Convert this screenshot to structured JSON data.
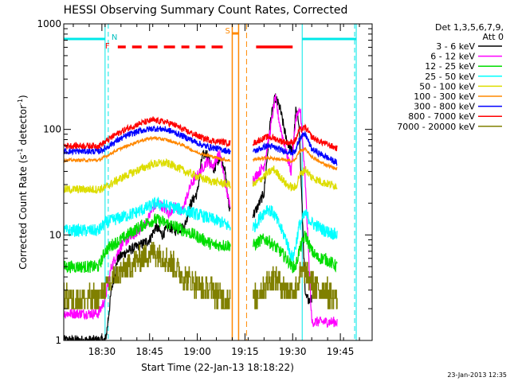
{
  "chart_data": {
    "type": "line",
    "title": "HESSI Observing Summary Count Rates, Corrected",
    "xlabel": "Start Time (22-Jan-13 18:18:22)",
    "ylabel_main": "Corrected Count Rate (s",
    "ylabel_sup1": "-1",
    "ylabel_mid": " detector",
    "ylabel_sup2": "-1",
    "ylabel_end": ")",
    "ylog": true,
    "ylim": [
      1,
      1000
    ],
    "y_ticks": [
      {
        "v": 1,
        "label": "1"
      },
      {
        "v": 10,
        "label": "10"
      },
      {
        "v": 100,
        "label": "100"
      },
      {
        "v": 1000,
        "label": "1000"
      }
    ],
    "xlim": [
      0,
      97
    ],
    "x_ticks": [
      {
        "v": 12,
        "label": "18:30"
      },
      {
        "v": 27,
        "label": "18:45"
      },
      {
        "v": 42,
        "label": "19:00"
      },
      {
        "v": 57,
        "label": "19:15"
      },
      {
        "v": 72,
        "label": "19:30"
      },
      {
        "v": 87,
        "label": "19:45"
      }
    ],
    "legend_title": "Det 1,3,5,6,7,9,",
    "legend_subtitle": "Att 0",
    "data_gaps": [
      [
        52.5,
        59.5
      ]
    ],
    "series": [
      {
        "name": "3 - 6 keV",
        "color": "#000000",
        "noise": 0.05,
        "points": [
          [
            0,
            1.0
          ],
          [
            13,
            1.0
          ],
          [
            13.5,
            1.2
          ],
          [
            15,
            3
          ],
          [
            17,
            6
          ],
          [
            20,
            7
          ],
          [
            24,
            8
          ],
          [
            27,
            9
          ],
          [
            29,
            12
          ],
          [
            31,
            10
          ],
          [
            33,
            12
          ],
          [
            35,
            11
          ],
          [
            38,
            12
          ],
          [
            40,
            20
          ],
          [
            42,
            25
          ],
          [
            43.5,
            55
          ],
          [
            45,
            60
          ],
          [
            47,
            40
          ],
          [
            49,
            55
          ],
          [
            50.5,
            45
          ],
          [
            52,
            18
          ],
          [
            60,
            16
          ],
          [
            63,
            25
          ],
          [
            65,
            120
          ],
          [
            66.5,
            200
          ],
          [
            68,
            160
          ],
          [
            70,
            80
          ],
          [
            72,
            60
          ],
          [
            73,
            150
          ],
          [
            74,
            120
          ],
          [
            76,
            2.5
          ],
          [
            78,
            2.5
          ]
        ]
      },
      {
        "name": "6 - 12 keV",
        "color": "#ff00ff",
        "noise": 0.05,
        "points": [
          [
            0,
            1.8
          ],
          [
            11,
            1.8
          ],
          [
            13,
            2.5
          ],
          [
            15,
            5
          ],
          [
            18,
            8
          ],
          [
            22,
            10
          ],
          [
            26,
            13
          ],
          [
            28,
            18
          ],
          [
            30,
            20
          ],
          [
            33,
            16
          ],
          [
            35,
            19
          ],
          [
            37,
            16
          ],
          [
            40,
            30
          ],
          [
            43,
            40
          ],
          [
            45,
            50
          ],
          [
            47,
            45
          ],
          [
            49,
            60
          ],
          [
            52,
            20
          ],
          [
            60,
            35
          ],
          [
            63,
            45
          ],
          [
            65,
            100
          ],
          [
            66.5,
            200
          ],
          [
            68,
            110
          ],
          [
            70,
            60
          ],
          [
            71.5,
            40
          ],
          [
            73,
            130
          ],
          [
            74.5,
            150
          ],
          [
            76,
            30
          ],
          [
            78,
            1.5
          ],
          [
            86,
            1.5
          ]
        ]
      },
      {
        "name": "12 - 25 keV",
        "color": "#00dd00",
        "noise": 0.06,
        "points": [
          [
            0,
            5
          ],
          [
            11,
            5
          ],
          [
            13,
            7
          ],
          [
            15,
            8
          ],
          [
            18,
            9
          ],
          [
            22,
            11
          ],
          [
            26,
            13
          ],
          [
            29,
            14
          ],
          [
            32,
            13
          ],
          [
            35,
            12
          ],
          [
            38,
            11
          ],
          [
            41,
            10
          ],
          [
            44,
            9
          ],
          [
            47,
            8
          ],
          [
            50,
            8
          ],
          [
            52,
            8
          ],
          [
            60,
            8
          ],
          [
            62,
            9
          ],
          [
            64,
            9
          ],
          [
            66,
            8
          ],
          [
            68,
            7
          ],
          [
            70,
            6
          ],
          [
            72,
            5
          ],
          [
            73,
            5
          ],
          [
            74,
            7
          ],
          [
            76,
            10
          ],
          [
            78,
            7
          ],
          [
            80,
            6
          ],
          [
            82,
            6
          ],
          [
            86,
            5
          ]
        ]
      },
      {
        "name": "25 - 50 keV",
        "color": "#00ffff",
        "noise": 0.06,
        "points": [
          [
            0,
            11
          ],
          [
            11,
            11
          ],
          [
            13,
            13
          ],
          [
            16,
            14
          ],
          [
            19,
            15
          ],
          [
            22,
            16
          ],
          [
            26,
            18
          ],
          [
            29,
            20
          ],
          [
            32,
            19
          ],
          [
            35,
            18
          ],
          [
            38,
            17
          ],
          [
            41,
            16
          ],
          [
            44,
            15
          ],
          [
            47,
            14
          ],
          [
            50,
            13
          ],
          [
            52,
            12
          ],
          [
            60,
            12
          ],
          [
            62,
            15
          ],
          [
            64,
            18
          ],
          [
            66,
            16
          ],
          [
            68,
            12
          ],
          [
            70,
            9
          ],
          [
            71,
            7
          ],
          [
            72,
            6
          ],
          [
            73,
            8
          ],
          [
            74,
            12
          ],
          [
            76,
            16
          ],
          [
            78,
            13
          ],
          [
            80,
            12
          ],
          [
            82,
            11
          ],
          [
            86,
            10
          ]
        ]
      },
      {
        "name": "50 - 100 keV",
        "color": "#dddd00",
        "noise": 0.04,
        "points": [
          [
            0,
            27
          ],
          [
            11,
            27
          ],
          [
            13,
            28
          ],
          [
            16,
            32
          ],
          [
            20,
            37
          ],
          [
            24,
            42
          ],
          [
            28,
            47
          ],
          [
            32,
            48
          ],
          [
            35,
            45
          ],
          [
            38,
            40
          ],
          [
            41,
            37
          ],
          [
            44,
            34
          ],
          [
            47,
            32
          ],
          [
            50,
            31
          ],
          [
            52,
            30
          ],
          [
            60,
            30
          ],
          [
            62,
            34
          ],
          [
            64,
            38
          ],
          [
            66,
            42
          ],
          [
            68,
            36
          ],
          [
            70,
            30
          ],
          [
            72,
            28
          ],
          [
            73,
            28
          ],
          [
            74,
            36
          ],
          [
            76,
            42
          ],
          [
            78,
            35
          ],
          [
            80,
            33
          ],
          [
            82,
            31
          ],
          [
            86,
            29
          ]
        ]
      },
      {
        "name": "100 - 300 keV",
        "color": "#ff8800",
        "noise": 0.015,
        "points": [
          [
            0,
            51
          ],
          [
            11,
            51
          ],
          [
            13,
            55
          ],
          [
            16,
            62
          ],
          [
            20,
            70
          ],
          [
            24,
            78
          ],
          [
            28,
            83
          ],
          [
            32,
            80
          ],
          [
            35,
            75
          ],
          [
            38,
            70
          ],
          [
            41,
            62
          ],
          [
            44,
            58
          ],
          [
            47,
            55
          ],
          [
            50,
            52
          ],
          [
            52,
            51
          ],
          [
            60,
            52
          ],
          [
            62,
            53
          ],
          [
            64,
            54
          ],
          [
            66,
            53
          ],
          [
            68,
            52
          ],
          [
            70,
            51
          ],
          [
            72,
            50
          ],
          [
            73,
            52
          ],
          [
            74,
            62
          ],
          [
            76,
            65
          ],
          [
            78,
            55
          ],
          [
            80,
            50
          ],
          [
            82,
            47
          ],
          [
            86,
            42
          ]
        ]
      },
      {
        "name": "300 - 800 keV",
        "color": "#0000ff",
        "noise": 0.03,
        "points": [
          [
            0,
            62
          ],
          [
            11,
            62
          ],
          [
            13,
            66
          ],
          [
            16,
            76
          ],
          [
            20,
            88
          ],
          [
            24,
            97
          ],
          [
            28,
            102
          ],
          [
            32,
            100
          ],
          [
            35,
            93
          ],
          [
            38,
            85
          ],
          [
            41,
            77
          ],
          [
            44,
            70
          ],
          [
            47,
            67
          ],
          [
            50,
            64
          ],
          [
            52,
            62
          ],
          [
            60,
            62
          ],
          [
            62,
            66
          ],
          [
            64,
            70
          ],
          [
            66,
            68
          ],
          [
            68,
            64
          ],
          [
            70,
            62
          ],
          [
            72,
            60
          ],
          [
            73,
            62
          ],
          [
            74,
            82
          ],
          [
            76,
            90
          ],
          [
            78,
            65
          ],
          [
            80,
            60
          ],
          [
            82,
            56
          ],
          [
            86,
            48
          ]
        ]
      },
      {
        "name": "800 - 7000 keV",
        "color": "#ff0000",
        "noise": 0.03,
        "points": [
          [
            0,
            70
          ],
          [
            11,
            70
          ],
          [
            13,
            76
          ],
          [
            16,
            88
          ],
          [
            20,
            102
          ],
          [
            24,
            114
          ],
          [
            28,
            122
          ],
          [
            32,
            118
          ],
          [
            35,
            110
          ],
          [
            38,
            98
          ],
          [
            41,
            90
          ],
          [
            44,
            82
          ],
          [
            47,
            78
          ],
          [
            50,
            76
          ],
          [
            52,
            74
          ],
          [
            60,
            75
          ],
          [
            62,
            80
          ],
          [
            64,
            85
          ],
          [
            66,
            83
          ],
          [
            68,
            78
          ],
          [
            70,
            75
          ],
          [
            72,
            75
          ],
          [
            73,
            80
          ],
          [
            74,
            98
          ],
          [
            76,
            104
          ],
          [
            78,
            85
          ],
          [
            80,
            78
          ],
          [
            82,
            74
          ],
          [
            86,
            66
          ]
        ]
      },
      {
        "name": "7000 - 20000 keV",
        "color": "#808000",
        "noise": 0.12,
        "step": true,
        "points": [
          [
            0,
            2.5
          ],
          [
            11,
            2.5
          ],
          [
            13,
            3
          ],
          [
            16,
            4
          ],
          [
            20,
            5
          ],
          [
            24,
            6
          ],
          [
            28,
            7
          ],
          [
            32,
            6
          ],
          [
            35,
            5
          ],
          [
            38,
            4
          ],
          [
            41,
            3.5
          ],
          [
            44,
            3
          ],
          [
            47,
            3
          ],
          [
            50,
            2.5
          ],
          [
            52,
            2.5
          ],
          [
            60,
            2.5
          ],
          [
            62,
            3
          ],
          [
            64,
            3.5
          ],
          [
            66,
            4
          ],
          [
            68,
            3.5
          ],
          [
            70,
            3
          ],
          [
            72,
            3
          ],
          [
            73,
            3
          ],
          [
            74,
            4
          ],
          [
            76,
            4.5
          ],
          [
            78,
            3.5
          ],
          [
            80,
            3
          ],
          [
            82,
            3
          ],
          [
            86,
            2.5
          ]
        ]
      }
    ],
    "annotations": {
      "night_label": "N",
      "flare_label": "F",
      "saa_label": "S",
      "flare_dashes": [
        [
          17,
          19.5
        ],
        [
          21.5,
          24.5
        ],
        [
          26.5,
          29.5
        ],
        [
          31.5,
          35
        ],
        [
          37,
          39.5
        ],
        [
          41.5,
          44.5
        ],
        [
          46.5,
          50
        ]
      ],
      "flare_solid": [
        [
          60.5,
          72
        ]
      ],
      "night_bars": [
        [
          0,
          13
        ],
        [
          75,
          92
        ]
      ],
      "cyan_vlines": [
        0,
        13,
        75,
        92
      ],
      "cyan_dashed_vlines": [
        14,
        91.5
      ],
      "saa_bars": [
        [
          53,
          55
        ]
      ],
      "orange_vlines": [
        53,
        55
      ],
      "orange_dashed_vlines": [
        57.5
      ]
    },
    "timestamp": "23-Jan-2013 12:35"
  }
}
